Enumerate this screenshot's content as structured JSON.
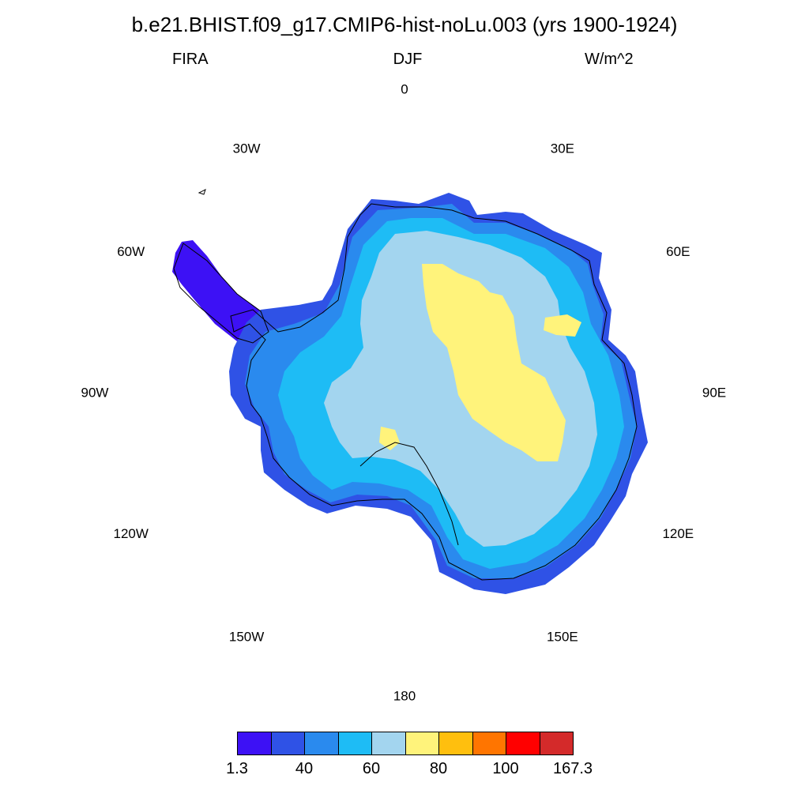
{
  "header": {
    "title": "b.e21.BHIST.f09_g17.CMIP6-hist-noLu.003 (yrs 1900-1924)",
    "variable": "FIRA",
    "season": "DJF",
    "units": "W/m^2"
  },
  "longitude_labels": [
    "0",
    "30E",
    "60E",
    "90E",
    "120E",
    "150E",
    "180",
    "150W",
    "120W",
    "90W",
    "60W",
    "30W"
  ],
  "colorbar": {
    "colors": [
      "#3d11f5",
      "#2f52e6",
      "#2a8aee",
      "#1ebcf5",
      "#a3d5ef",
      "#fff37b",
      "#ffbf0e",
      "#ff7500",
      "#ff0000",
      "#d42a2a"
    ],
    "tick_labels": [
      "1.3",
      "40",
      "60",
      "80",
      "100",
      "167.3"
    ]
  },
  "map": {
    "projection": "south polar stereographic",
    "coastline_color": "#000000",
    "background_color": "#ffffff"
  }
}
